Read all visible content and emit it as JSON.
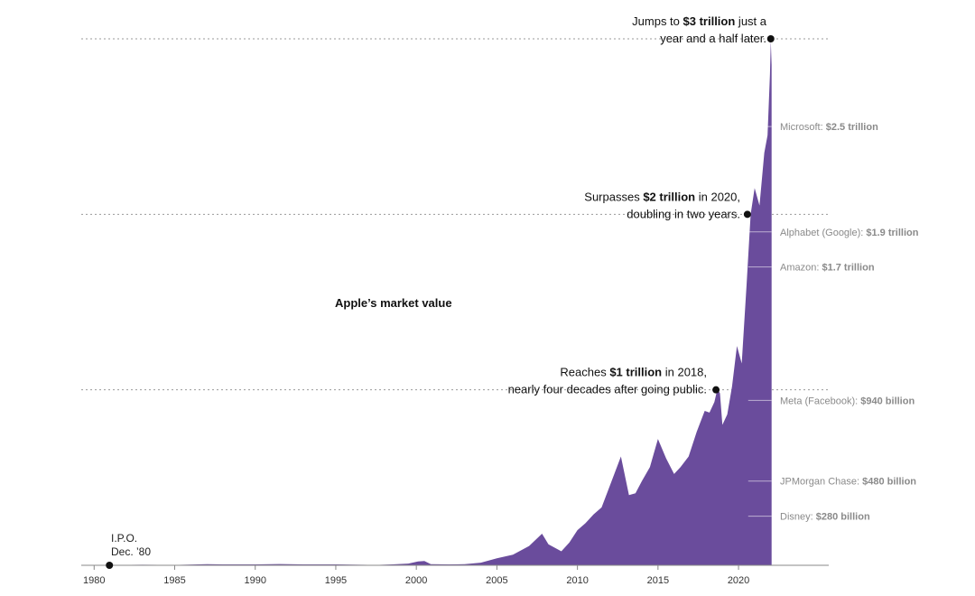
{
  "colors": {
    "area": "#6a4c9c",
    "text": "#111111",
    "muted": "#8a8a8a"
  },
  "chart_data": {
    "type": "area",
    "title": "Apple’s market value",
    "xlabel": "",
    "ylabel": "",
    "xlim": [
      1979.2,
      2025.6
    ],
    "ylim": [
      0,
      3050
    ],
    "x_ticks": [
      "1980",
      "1985",
      "1990",
      "1995",
      "2000",
      "2005",
      "2010",
      "2015",
      "2020"
    ],
    "grid": false,
    "units": "billions of dollars",
    "series": [
      {
        "values_x_y_billions": [
          [
            1980.95,
            1.8
          ],
          [
            1981.5,
            2
          ],
          [
            1983,
            3
          ],
          [
            1985,
            2
          ],
          [
            1987,
            6
          ],
          [
            1988,
            5
          ],
          [
            1990,
            5
          ],
          [
            1991.5,
            7
          ],
          [
            1993,
            5
          ],
          [
            1995,
            5
          ],
          [
            1996.5,
            3
          ],
          [
            1997.5,
            2
          ],
          [
            1998.5,
            5
          ],
          [
            1999.5,
            10
          ],
          [
            2000.1,
            22
          ],
          [
            2000.5,
            24
          ],
          [
            2000.9,
            6
          ],
          [
            2002,
            5
          ],
          [
            2003,
            6
          ],
          [
            2004,
            15
          ],
          [
            2005,
            40
          ],
          [
            2006,
            60
          ],
          [
            2007,
            110
          ],
          [
            2007.8,
            180
          ],
          [
            2008.2,
            120
          ],
          [
            2009,
            80
          ],
          [
            2009.5,
            130
          ],
          [
            2010,
            200
          ],
          [
            2010.5,
            240
          ],
          [
            2011,
            290
          ],
          [
            2011.5,
            330
          ],
          [
            2012,
            450
          ],
          [
            2012.7,
            620
          ],
          [
            2013.2,
            400
          ],
          [
            2013.6,
            410
          ],
          [
            2014,
            480
          ],
          [
            2014.5,
            560
          ],
          [
            2015,
            720
          ],
          [
            2015.5,
            610
          ],
          [
            2016,
            520
          ],
          [
            2016.4,
            560
          ],
          [
            2016.9,
            620
          ],
          [
            2017.4,
            760
          ],
          [
            2017.9,
            880
          ],
          [
            2018.2,
            870
          ],
          [
            2018.5,
            930
          ],
          [
            2018.7,
            1010
          ],
          [
            2018.85,
            980
          ],
          [
            2019,
            800
          ],
          [
            2019.3,
            860
          ],
          [
            2019.6,
            1020
          ],
          [
            2019.9,
            1250
          ],
          [
            2020.2,
            1150
          ],
          [
            2020.5,
            1600
          ],
          [
            2020.75,
            2000
          ],
          [
            2021.0,
            2150
          ],
          [
            2021.3,
            2050
          ],
          [
            2021.6,
            2350
          ],
          [
            2021.8,
            2450
          ],
          [
            2021.95,
            2800
          ],
          [
            2022.0,
            2990
          ],
          [
            2022.05,
            2850
          ]
        ]
      }
    ],
    "annotations": [
      {
        "pre": "Jumps to ",
        "bold": "$3 trillion",
        "post": " just a",
        "line2": "year and a half later.",
        "x": 2022.0,
        "y": 3000
      },
      {
        "pre": "Surpasses ",
        "bold": "$2 trillion",
        "post": " in 2020,",
        "line2": "doubling in two years.",
        "x": 2020.55,
        "y": 2000
      },
      {
        "pre": "Reaches ",
        "bold": "$1 trillion",
        "post": " in 2018,",
        "line2": "nearly four decades after going public.",
        "x": 2018.6,
        "y": 1000
      }
    ],
    "ipo": {
      "line1": "I.P.O.",
      "line2": "Dec. ’80",
      "x": 1980.95,
      "y": 0
    },
    "comparisons": [
      {
        "company": "Microsoft: ",
        "value": "$2.5 trillion",
        "v": 2500
      },
      {
        "company": "Alphabet (Google): ",
        "value": "$1.9 trillion",
        "v": 1900
      },
      {
        "company": "Amazon: ",
        "value": "$1.7 trillion",
        "v": 1700
      },
      {
        "company": "Meta (Facebook): ",
        "value": "$940 billion",
        "v": 940
      },
      {
        "company": "JPMorgan Chase: ",
        "value": "$480 billion",
        "v": 480
      },
      {
        "company": "Disney: ",
        "value": "$280 billion",
        "v": 280
      }
    ]
  }
}
